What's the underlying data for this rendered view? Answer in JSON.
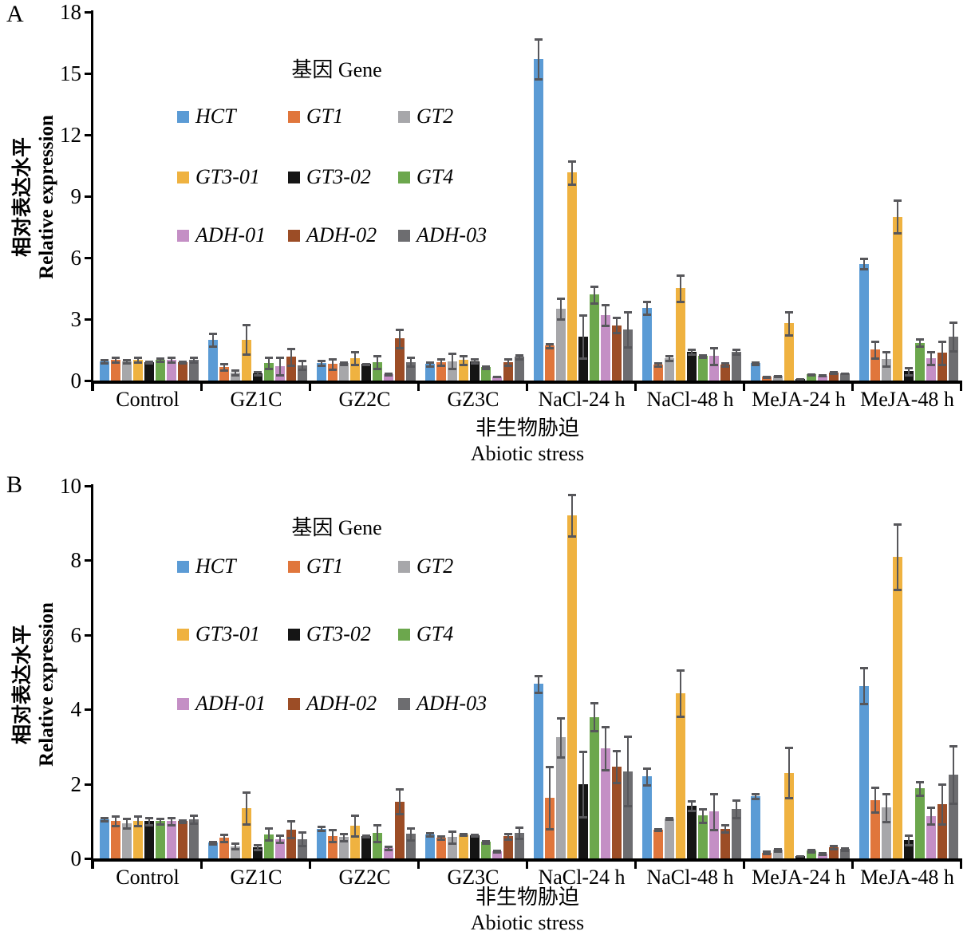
{
  "figure": {
    "description_colors": {
      "error_bar": "#57575B",
      "axis": "#000000",
      "background": "#FFFFFF"
    }
  },
  "chart_data": [
    {
      "panel_label": "A",
      "type": "bar",
      "legend_title": "基因 Gene",
      "ylabel_zh": "相对表达水平",
      "ylabel_en": "Relative expression",
      "xlabel_zh": "非生物胁迫",
      "xlabel_en": "Abiotic stress",
      "ylim": [
        0,
        18
      ],
      "ytick_step": 3,
      "grid": false,
      "legend_position": "inside-top-left",
      "categories": [
        "Control",
        "GZ1C",
        "GZ2C",
        "GZ3C",
        "NaCl-24 h",
        "NaCl-48 h",
        "MeJA-24 h",
        "MeJA-48 h"
      ],
      "series": [
        {
          "name": "HCT",
          "color": "#5B9BD5",
          "values": [
            0.95,
            2.0,
            0.85,
            0.8,
            15.7,
            3.55,
            0.85,
            5.7
          ],
          "errors": [
            0.12,
            0.35,
            0.15,
            0.15,
            1.0,
            0.35,
            0.1,
            0.3
          ]
        },
        {
          "name": "GT1",
          "color": "#E0763C",
          "values": [
            1.0,
            0.65,
            0.8,
            0.9,
            1.7,
            0.78,
            0.18,
            1.5
          ],
          "errors": [
            0.15,
            0.2,
            0.3,
            0.2,
            0.15,
            0.1,
            0.05,
            0.45
          ]
        },
        {
          "name": "GT2",
          "color": "#A7A7AA",
          "values": [
            0.95,
            0.4,
            0.85,
            0.95,
            3.5,
            1.1,
            0.22,
            1.05
          ],
          "errors": [
            0.12,
            0.15,
            0.1,
            0.4,
            0.55,
            0.15,
            0.05,
            0.4
          ]
        },
        {
          "name": "GT3-01",
          "color": "#EFB240",
          "values": [
            1.0,
            2.0,
            1.1,
            1.0,
            10.15,
            4.5,
            2.8,
            8.0
          ],
          "errors": [
            0.15,
            0.75,
            0.35,
            0.25,
            0.6,
            0.7,
            0.6,
            0.85
          ]
        },
        {
          "name": "GT3-02",
          "color": "#151515",
          "values": [
            0.9,
            0.35,
            0.8,
            0.95,
            2.15,
            1.4,
            0.08,
            0.45
          ],
          "errors": [
            0.08,
            0.1,
            0.05,
            0.15,
            1.1,
            0.15,
            0.03,
            0.2
          ]
        },
        {
          "name": "GT4",
          "color": "#6CA74D",
          "values": [
            1.0,
            0.85,
            0.9,
            0.65,
            4.2,
            1.2,
            0.3,
            1.85
          ],
          "errors": [
            0.12,
            0.3,
            0.35,
            0.1,
            0.45,
            0.1,
            0.05,
            0.2
          ]
        },
        {
          "name": "ADH-01",
          "color": "#C48FC5",
          "values": [
            1.0,
            0.7,
            0.3,
            0.2,
            3.2,
            1.2,
            0.25,
            1.1
          ],
          "errors": [
            0.15,
            0.45,
            0.08,
            0.05,
            0.55,
            0.45,
            0.05,
            0.35
          ]
        },
        {
          "name": "ADH-02",
          "color": "#9C4D26",
          "values": [
            0.9,
            1.15,
            2.05,
            0.9,
            2.7,
            0.78,
            0.4,
            1.35
          ],
          "errors": [
            0.08,
            0.45,
            0.5,
            0.2,
            0.4,
            0.1,
            0.08,
            0.6
          ]
        },
        {
          "name": "ADH-03",
          "color": "#6D6D70",
          "values": [
            1.0,
            0.75,
            0.9,
            1.15,
            2.5,
            1.4,
            0.35,
            2.15
          ],
          "errors": [
            0.15,
            0.25,
            0.25,
            0.15,
            0.9,
            0.15,
            0.05,
            0.75
          ]
        }
      ]
    },
    {
      "panel_label": "B",
      "type": "bar",
      "legend_title": "基因 Gene",
      "ylabel_zh": "相对表达水平",
      "ylabel_en": "Relative expression",
      "xlabel_zh": "非生物胁迫",
      "xlabel_en": "Abiotic stress",
      "ylim": [
        0,
        10
      ],
      "ytick_step": 2,
      "grid": false,
      "legend_position": "inside-top-left",
      "categories": [
        "Control",
        "GZ1C",
        "GZ2C",
        "GZ3C",
        "NaCl-24 h",
        "NaCl-48 h",
        "MeJA-24 h",
        "MeJA-48 h"
      ],
      "series": [
        {
          "name": "HCT",
          "color": "#5B9BD5",
          "values": [
            1.05,
            0.42,
            0.8,
            0.64,
            4.68,
            2.2,
            1.67,
            4.63
          ],
          "errors": [
            0.06,
            0.05,
            0.07,
            0.06,
            0.25,
            0.25,
            0.08,
            0.5
          ]
        },
        {
          "name": "GT1",
          "color": "#E0763C",
          "values": [
            1.0,
            0.55,
            0.61,
            0.56,
            1.63,
            0.77,
            0.16,
            1.57
          ],
          "errors": [
            0.15,
            0.12,
            0.18,
            0.06,
            0.85,
            0.05,
            0.05,
            0.35
          ]
        },
        {
          "name": "GT2",
          "color": "#A7A7AA",
          "values": [
            0.95,
            0.33,
            0.57,
            0.57,
            3.25,
            1.07,
            0.23,
            1.36
          ],
          "errors": [
            0.15,
            0.1,
            0.12,
            0.18,
            0.55,
            0.04,
            0.05,
            0.4
          ]
        },
        {
          "name": "GT3-01",
          "color": "#EFB240",
          "values": [
            1.0,
            1.35,
            0.87,
            0.64,
            9.2,
            4.43,
            2.3,
            8.1
          ],
          "errors": [
            0.15,
            0.45,
            0.3,
            0.05,
            0.58,
            0.65,
            0.7,
            0.9
          ]
        },
        {
          "name": "GT3-02",
          "color": "#151515",
          "values": [
            1.0,
            0.3,
            0.6,
            0.62,
            2.0,
            1.42,
            0.06,
            0.5
          ],
          "errors": [
            0.12,
            0.08,
            0.05,
            0.04,
            0.9,
            0.15,
            0.02,
            0.15
          ]
        },
        {
          "name": "GT4",
          "color": "#6CA74D",
          "values": [
            1.0,
            0.65,
            0.68,
            0.44,
            3.8,
            1.15,
            0.21,
            1.88
          ],
          "errors": [
            0.1,
            0.18,
            0.25,
            0.06,
            0.4,
            0.2,
            0.05,
            0.2
          ]
        },
        {
          "name": "ADH-01",
          "color": "#C48FC5",
          "values": [
            1.0,
            0.52,
            0.28,
            0.2,
            2.95,
            1.26,
            0.13,
            1.14
          ],
          "errors": [
            0.12,
            0.12,
            0.06,
            0.04,
            0.6,
            0.5,
            0.04,
            0.25
          ]
        },
        {
          "name": "ADH-02",
          "color": "#9C4D26",
          "values": [
            1.0,
            0.78,
            1.53,
            0.59,
            2.46,
            0.8,
            0.3,
            1.46
          ],
          "errors": [
            0.05,
            0.25,
            0.35,
            0.1,
            0.45,
            0.12,
            0.06,
            0.55
          ]
        },
        {
          "name": "ADH-03",
          "color": "#6D6D70",
          "values": [
            1.05,
            0.52,
            0.66,
            0.68,
            2.34,
            1.33,
            0.25,
            2.25
          ],
          "errors": [
            0.12,
            0.2,
            0.18,
            0.17,
            0.95,
            0.25,
            0.06,
            0.8
          ]
        }
      ]
    }
  ]
}
